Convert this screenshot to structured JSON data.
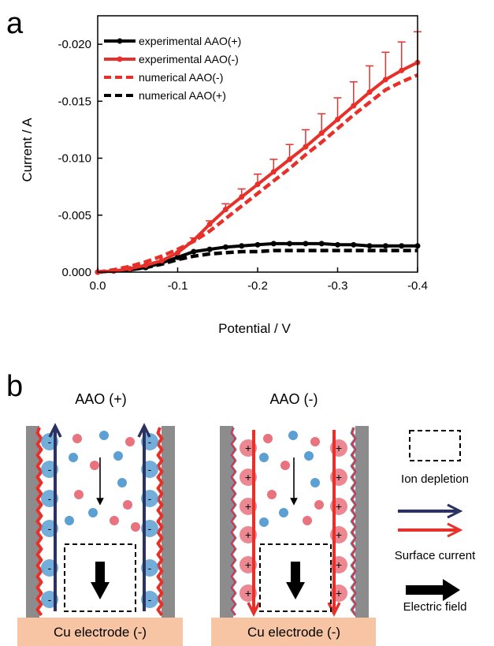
{
  "panel_a": {
    "letter": "a"
  },
  "panel_b": {
    "letter": "b",
    "left_title": "AAO (+)",
    "right_title": "AAO (-)",
    "electrode_label": "Cu electrode (-)",
    "legend": {
      "ion_depletion": "Ion depletion",
      "surface_current": "Surface current",
      "electric_field": "Electric field"
    },
    "colors": {
      "wall": "#8c8c8c",
      "cation": "#e8737f",
      "anion": "#5b9fd3",
      "navy": "#2b3160",
      "red": "#e8302a",
      "electrode": "#f8c5a4"
    }
  },
  "chart_data": {
    "type": "line",
    "xlabel": "Potential / V",
    "ylabel": "Current / A",
    "xlim": [
      0.0,
      -0.4
    ],
    "ylim": [
      0.0,
      -0.0225
    ],
    "x_ticks": [
      0.0,
      -0.1,
      -0.2,
      -0.3,
      -0.4
    ],
    "x_tick_labels": [
      "0.0",
      "-0.1",
      "-0.2",
      "-0.3",
      "-0.4"
    ],
    "y_ticks": [
      0.0,
      -0.005,
      -0.01,
      -0.015,
      -0.02
    ],
    "y_tick_labels": [
      "0.000",
      "-0.005",
      "-0.010",
      "-0.015",
      "-0.020"
    ],
    "grid": false,
    "legend_position": "top-left",
    "series": [
      {
        "name": "experimental AAO(+)",
        "color": "#000000",
        "style": "solid-markers",
        "x": [
          0,
          -0.02,
          -0.04,
          -0.06,
          -0.08,
          -0.1,
          -0.12,
          -0.14,
          -0.16,
          -0.18,
          -0.2,
          -0.22,
          -0.24,
          -0.26,
          -0.28,
          -0.3,
          -0.32,
          -0.34,
          -0.36,
          -0.38,
          -0.4
        ],
        "y": [
          0,
          -0.0001,
          -0.0002,
          -0.0004,
          -0.0008,
          -0.0013,
          -0.0018,
          -0.002,
          -0.0022,
          -0.0023,
          -0.0024,
          -0.0025,
          -0.0025,
          -0.0025,
          -0.0025,
          -0.0024,
          -0.0024,
          -0.0023,
          -0.0023,
          -0.0023,
          -0.0023
        ]
      },
      {
        "name": "experimental AAO(-)",
        "color": "#e8302a",
        "style": "solid-markers",
        "x": [
          0,
          -0.02,
          -0.04,
          -0.06,
          -0.08,
          -0.1,
          -0.12,
          -0.14,
          -0.16,
          -0.18,
          -0.2,
          -0.22,
          -0.24,
          -0.26,
          -0.28,
          -0.3,
          -0.32,
          -0.34,
          -0.36,
          -0.38,
          -0.4
        ],
        "y": [
          0,
          -0.0001,
          -0.0003,
          -0.0006,
          -0.001,
          -0.0017,
          -0.0028,
          -0.0042,
          -0.0055,
          -0.0066,
          -0.0077,
          -0.0088,
          -0.0099,
          -0.011,
          -0.0122,
          -0.0134,
          -0.0146,
          -0.0158,
          -0.0169,
          -0.0177,
          -0.0184
        ],
        "error": [
          0,
          0,
          0,
          0,
          0,
          0,
          0.0002,
          0.0003,
          0.0005,
          0.0007,
          0.0009,
          0.0011,
          0.0013,
          0.0015,
          0.0017,
          0.0019,
          0.0021,
          0.0023,
          0.0024,
          0.0025,
          0.0027
        ]
      },
      {
        "name": "numerical AAO(-)",
        "color": "#e8302a",
        "style": "dashed",
        "x": [
          0,
          -0.02,
          -0.04,
          -0.06,
          -0.08,
          -0.1,
          -0.12,
          -0.14,
          -0.16,
          -0.18,
          -0.2,
          -0.22,
          -0.24,
          -0.26,
          -0.28,
          -0.3,
          -0.32,
          -0.34,
          -0.36,
          -0.38,
          -0.4
        ],
        "y": [
          0,
          -0.0002,
          -0.0005,
          -0.0009,
          -0.0014,
          -0.002,
          -0.0027,
          -0.0036,
          -0.0047,
          -0.0058,
          -0.0069,
          -0.008,
          -0.0091,
          -0.0103,
          -0.0114,
          -0.0126,
          -0.0138,
          -0.0149,
          -0.016,
          -0.0167,
          -0.0173
        ]
      },
      {
        "name": "numerical AAO(+)",
        "color": "#000000",
        "style": "dashed",
        "x": [
          0,
          -0.02,
          -0.04,
          -0.06,
          -0.08,
          -0.1,
          -0.12,
          -0.14,
          -0.16,
          -0.18,
          -0.2,
          -0.22,
          -0.24,
          -0.26,
          -0.28,
          -0.3,
          -0.32,
          -0.34,
          -0.36,
          -0.38,
          -0.4
        ],
        "y": [
          0,
          -0.0001,
          -0.0002,
          -0.0004,
          -0.0007,
          -0.0011,
          -0.0014,
          -0.0016,
          -0.0017,
          -0.0018,
          -0.0018,
          -0.0019,
          -0.0019,
          -0.0019,
          -0.0019,
          -0.0019,
          -0.0019,
          -0.0019,
          -0.0019,
          -0.0019,
          -0.0019
        ]
      }
    ]
  }
}
